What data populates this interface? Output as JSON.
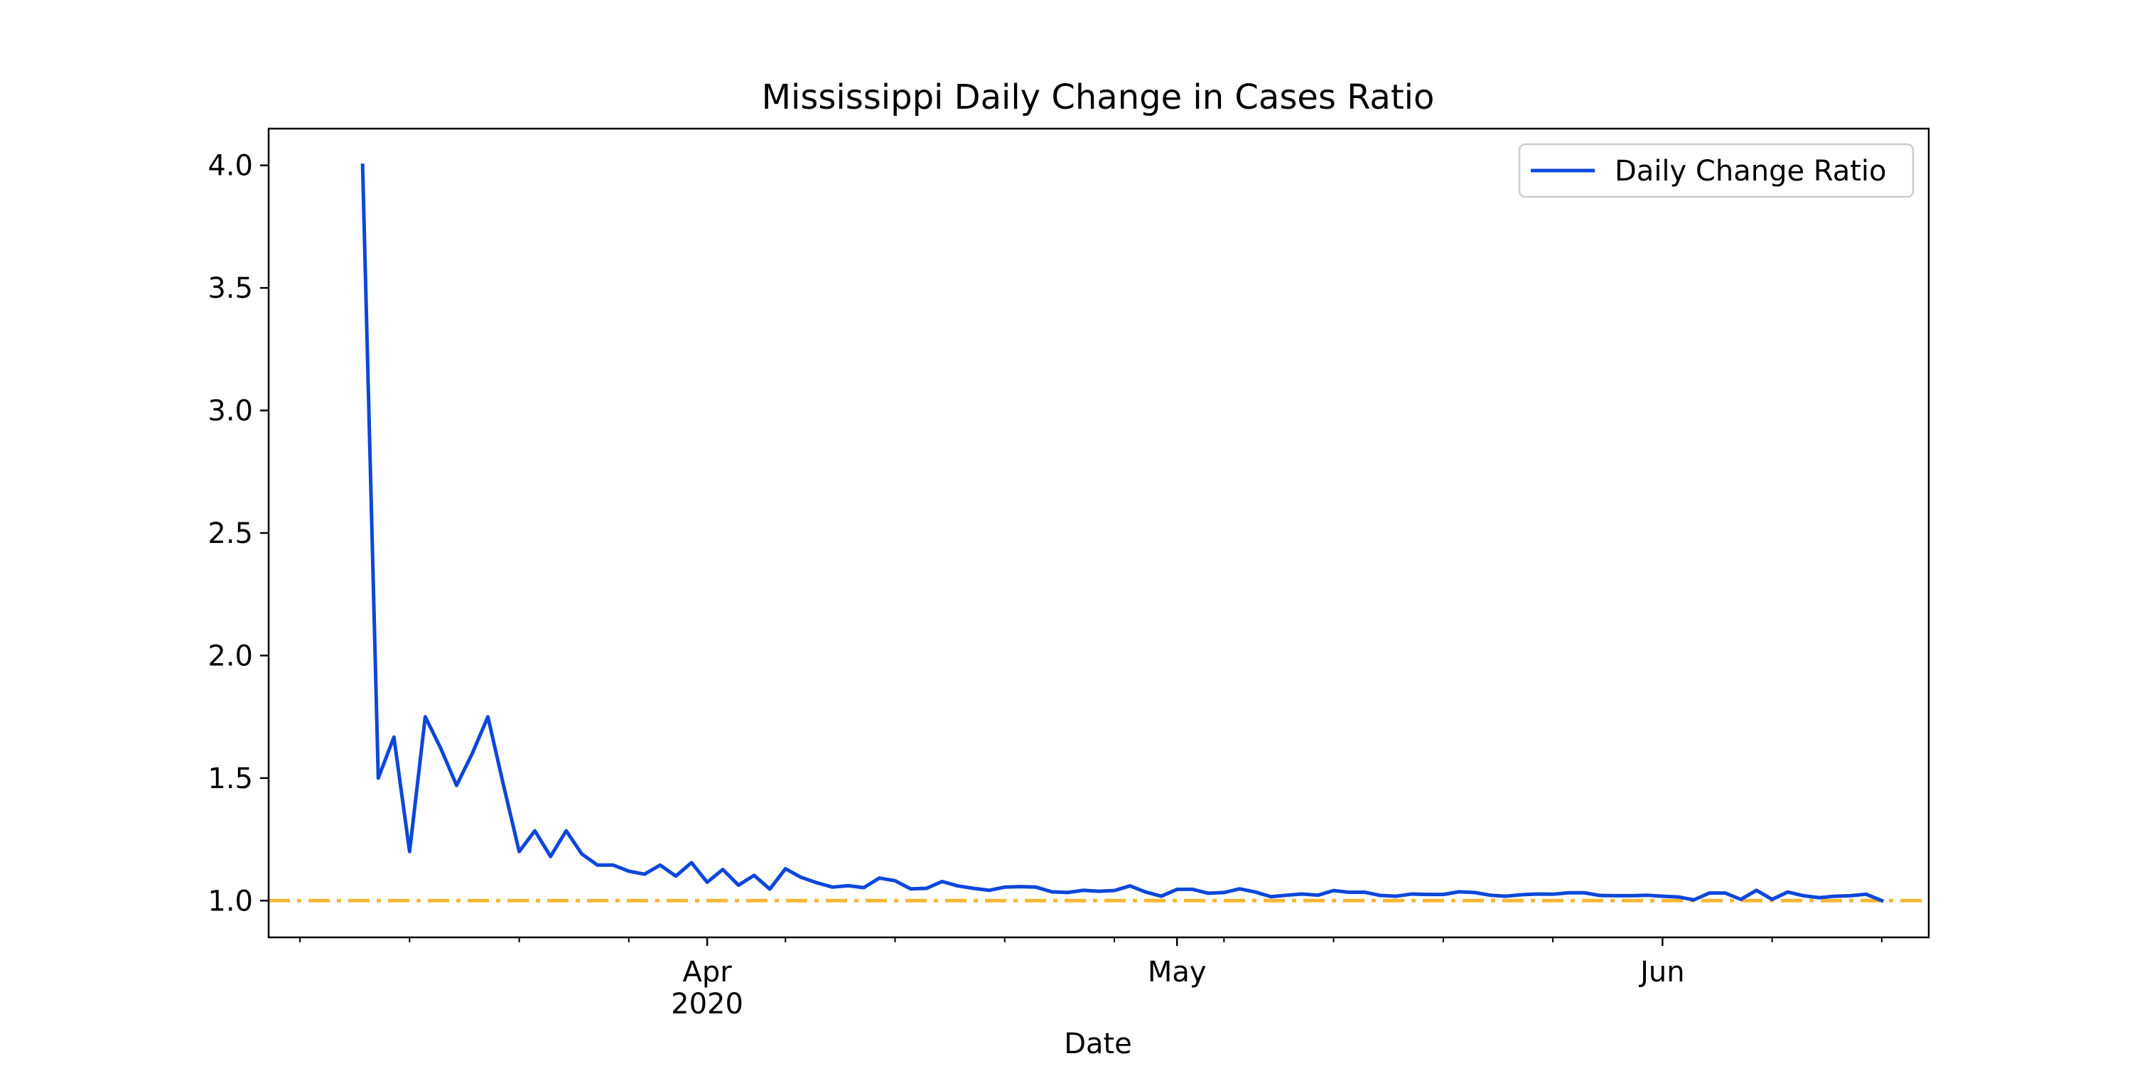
{
  "chart_data": {
    "type": "line",
    "title": "Mississippi Daily Change in Cases Ratio",
    "xlabel": "Date",
    "ylabel": "",
    "ylim": [
      0.85,
      4.15
    ],
    "xlim": [
      "2020-03-04",
      "2020-06-18"
    ],
    "yticks": [
      1.0,
      1.5,
      2.0,
      2.5,
      3.0,
      3.5,
      4.0
    ],
    "ytick_labels": [
      "1.0",
      "1.5",
      "2.0",
      "2.5",
      "3.0",
      "3.5",
      "4.0"
    ],
    "xticks_major": [
      {
        "date": "2020-04-01",
        "label": "Apr",
        "sublabel": "2020"
      },
      {
        "date": "2020-05-01",
        "label": "May",
        "sublabel": ""
      },
      {
        "date": "2020-06-01",
        "label": "Jun",
        "sublabel": ""
      }
    ],
    "xticks_minor": [
      "2020-03-06",
      "2020-03-13",
      "2020-03-20",
      "2020-03-27",
      "2020-04-06",
      "2020-04-13",
      "2020-04-20",
      "2020-04-27",
      "2020-05-04",
      "2020-05-11",
      "2020-05-18",
      "2020-05-25",
      "2020-06-08",
      "2020-06-15"
    ],
    "legend": {
      "position": "upper right"
    },
    "grid": false,
    "series": [
      {
        "name": "Daily Change Ratio",
        "color": "#0d47d9",
        "start_date": "2020-03-10",
        "values": [
          4.0,
          1.5,
          1.667,
          1.2,
          1.75,
          1.62,
          1.47,
          1.6,
          1.75,
          1.47,
          1.2,
          1.285,
          1.18,
          1.285,
          1.19,
          1.145,
          1.145,
          1.12,
          1.108,
          1.145,
          1.1,
          1.155,
          1.075,
          1.127,
          1.063,
          1.103,
          1.047,
          1.13,
          1.095,
          1.073,
          1.055,
          1.061,
          1.053,
          1.092,
          1.081,
          1.048,
          1.05,
          1.078,
          1.06,
          1.05,
          1.042,
          1.055,
          1.057,
          1.055,
          1.036,
          1.033,
          1.042,
          1.038,
          1.041,
          1.06,
          1.035,
          1.018,
          1.046,
          1.046,
          1.03,
          1.033,
          1.048,
          1.035,
          1.016,
          1.022,
          1.027,
          1.022,
          1.041,
          1.034,
          1.034,
          1.021,
          1.018,
          1.027,
          1.025,
          1.025,
          1.036,
          1.033,
          1.022,
          1.018,
          1.024,
          1.027,
          1.026,
          1.032,
          1.032,
          1.021,
          1.02,
          1.02,
          1.022,
          1.018,
          1.015,
          1.003,
          1.031,
          1.031,
          1.005,
          1.042,
          1.005,
          1.035,
          1.02,
          1.012,
          1.018,
          1.02,
          1.026,
          1.0
        ]
      }
    ],
    "reference_line": {
      "y": 1.0,
      "color": "#f6b634",
      "style": "dashdot"
    }
  }
}
